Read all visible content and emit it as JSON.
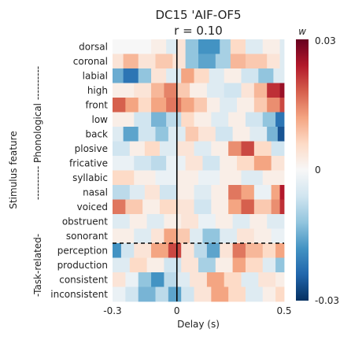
{
  "chart_data": {
    "type": "heatmap",
    "title": "DC15 'AIF-OF5",
    "subtitle": "r = 0.10",
    "xlabel": "Delay (s)",
    "ylabel": "Stimulus feature",
    "group_labels": [
      "---------- Phonological ----------",
      "-Task-related-"
    ],
    "colorbar_label": "w",
    "colorbar_ticks": [
      "0.03",
      "0",
      "-0.03"
    ],
    "x_ticks": [
      "-0.3",
      "0",
      "0.5"
    ],
    "x_range": [
      -0.3,
      0.5
    ],
    "value_range": [
      -0.03,
      0.03
    ],
    "colormap": [
      "#053061",
      "#2166ac",
      "#4393c3",
      "#92c5de",
      "#d1e5f0",
      "#f7f7f7",
      "#fddbc7",
      "#f4a582",
      "#d6604d",
      "#b2182b",
      "#67001f"
    ],
    "zero_line_x": 0,
    "features": [
      "dorsal",
      "coronal",
      "labial",
      "high",
      "front",
      "low",
      "back",
      "plosive",
      "fricative",
      "syllabic",
      "nasal",
      "voiced",
      "obstruent",
      "sonorant",
      "perception",
      "production",
      "consistent",
      "inconsistent"
    ],
    "segments_note_units": "x in seconds, v = weight",
    "rows": [
      {
        "feature": "dorsal",
        "segments": [
          [
            -0.3,
            0
          ],
          [
            -0.12,
            0.002
          ],
          [
            -0.05,
            -0.004
          ],
          [
            0.0,
            0.004
          ],
          [
            0.04,
            -0.012
          ],
          [
            0.1,
            -0.018
          ],
          [
            0.2,
            -0.01
          ],
          [
            0.25,
            0.006
          ],
          [
            0.32,
            -0.004
          ],
          [
            0.4,
            0.002
          ],
          [
            0.48,
            -0.004
          ]
        ]
      },
      {
        "feature": "coronal",
        "segments": [
          [
            -0.3,
            0.004
          ],
          [
            -0.25,
            0.01
          ],
          [
            -0.18,
            0.004
          ],
          [
            -0.1,
            0.008
          ],
          [
            -0.02,
            0.004
          ],
          [
            0.04,
            -0.012
          ],
          [
            0.1,
            -0.016
          ],
          [
            0.18,
            -0.01
          ],
          [
            0.25,
            0.01
          ],
          [
            0.32,
            0.008
          ],
          [
            0.42,
            0.004
          ],
          [
            0.48,
            -0.004
          ]
        ]
      },
      {
        "feature": "labial",
        "segments": [
          [
            -0.3,
            -0.015
          ],
          [
            -0.25,
            -0.022
          ],
          [
            -0.18,
            -0.012
          ],
          [
            -0.12,
            0.004
          ],
          [
            -0.05,
            -0.004
          ],
          [
            0.02,
            0.012
          ],
          [
            0.08,
            0.006
          ],
          [
            0.15,
            -0.004
          ],
          [
            0.22,
            0.002
          ],
          [
            0.3,
            -0.006
          ],
          [
            0.38,
            -0.012
          ],
          [
            0.45,
            -0.004
          ]
        ]
      },
      {
        "feature": "high",
        "segments": [
          [
            -0.3,
            0.002
          ],
          [
            -0.2,
            0.004
          ],
          [
            -0.12,
            0.01
          ],
          [
            -0.06,
            0.015
          ],
          [
            0.0,
            0.008
          ],
          [
            0.06,
            0.002
          ],
          [
            0.14,
            -0.004
          ],
          [
            0.22,
            -0.006
          ],
          [
            0.3,
            0.004
          ],
          [
            0.36,
            0.01
          ],
          [
            0.42,
            0.022
          ],
          [
            0.48,
            0.026
          ]
        ]
      },
      {
        "feature": "front",
        "segments": [
          [
            -0.3,
            0.018
          ],
          [
            -0.24,
            0.012
          ],
          [
            -0.18,
            0.006
          ],
          [
            -0.12,
            0.012
          ],
          [
            -0.05,
            0.016
          ],
          [
            0.02,
            0.012
          ],
          [
            0.08,
            0.008
          ],
          [
            0.14,
            0.002
          ],
          [
            0.2,
            -0.004
          ],
          [
            0.28,
            0.002
          ],
          [
            0.36,
            0.008
          ],
          [
            0.42,
            0.014
          ],
          [
            0.48,
            0.02
          ]
        ]
      },
      {
        "feature": "low",
        "segments": [
          [
            -0.3,
            0.002
          ],
          [
            -0.2,
            -0.006
          ],
          [
            -0.12,
            -0.014
          ],
          [
            -0.05,
            -0.008
          ],
          [
            0.02,
            0.006
          ],
          [
            0.08,
            0.002
          ],
          [
            0.16,
            -0.004
          ],
          [
            0.24,
            0.002
          ],
          [
            0.32,
            -0.006
          ],
          [
            0.4,
            -0.012
          ],
          [
            0.46,
            -0.022
          ]
        ]
      },
      {
        "feature": "back",
        "segments": [
          [
            -0.3,
            -0.004
          ],
          [
            -0.25,
            -0.016
          ],
          [
            -0.18,
            -0.006
          ],
          [
            -0.1,
            -0.012
          ],
          [
            -0.04,
            -0.004
          ],
          [
            0.04,
            0.008
          ],
          [
            0.1,
            0.004
          ],
          [
            0.18,
            -0.006
          ],
          [
            0.26,
            0.002
          ],
          [
            0.34,
            -0.004
          ],
          [
            0.42,
            -0.014
          ],
          [
            0.47,
            -0.026
          ]
        ]
      },
      {
        "feature": "plosive",
        "segments": [
          [
            -0.3,
            -0.006
          ],
          [
            -0.22,
            0.002
          ],
          [
            -0.15,
            0.006
          ],
          [
            -0.08,
            -0.004
          ],
          [
            0.0,
            0.004
          ],
          [
            0.08,
            -0.004
          ],
          [
            0.16,
            0.002
          ],
          [
            0.24,
            0.014
          ],
          [
            0.3,
            0.02
          ],
          [
            0.36,
            0.006
          ],
          [
            0.44,
            -0.006
          ]
        ]
      },
      {
        "feature": "fricative",
        "segments": [
          [
            -0.3,
            -0.002
          ],
          [
            -0.2,
            -0.006
          ],
          [
            -0.12,
            -0.008
          ],
          [
            -0.05,
            -0.002
          ],
          [
            0.04,
            0.004
          ],
          [
            0.12,
            -0.006
          ],
          [
            0.2,
            0.002
          ],
          [
            0.28,
            0.006
          ],
          [
            0.36,
            0.012
          ],
          [
            0.44,
            0.004
          ]
        ]
      },
      {
        "feature": "syllabic",
        "segments": [
          [
            -0.3,
            0.006
          ],
          [
            -0.2,
            0.002
          ],
          [
            -0.1,
            -0.002
          ],
          [
            0.0,
            0.002
          ],
          [
            0.1,
            -0.002
          ],
          [
            0.2,
            0.002
          ],
          [
            0.3,
            -0.004
          ],
          [
            0.4,
            0.002
          ]
        ]
      },
      {
        "feature": "nasal",
        "segments": [
          [
            -0.3,
            -0.008
          ],
          [
            -0.22,
            -0.004
          ],
          [
            -0.15,
            0.004
          ],
          [
            -0.08,
            -0.006
          ],
          [
            0.0,
            0.002
          ],
          [
            0.08,
            -0.004
          ],
          [
            0.16,
            0.002
          ],
          [
            0.24,
            0.016
          ],
          [
            0.3,
            0.012
          ],
          [
            0.36,
            -0.002
          ],
          [
            0.44,
            0.012
          ],
          [
            0.48,
            0.024
          ]
        ]
      },
      {
        "feature": "voiced",
        "segments": [
          [
            -0.3,
            0.016
          ],
          [
            -0.24,
            0.008
          ],
          [
            -0.16,
            0.002
          ],
          [
            -0.08,
            0.006
          ],
          [
            0.0,
            0.004
          ],
          [
            0.08,
            -0.006
          ],
          [
            0.16,
            0.002
          ],
          [
            0.24,
            0.012
          ],
          [
            0.3,
            0.018
          ],
          [
            0.36,
            0.008
          ],
          [
            0.44,
            0.014
          ],
          [
            0.48,
            0.022
          ]
        ]
      },
      {
        "feature": "obstruent",
        "segments": [
          [
            -0.3,
            -0.004
          ],
          [
            -0.22,
            0.002
          ],
          [
            -0.14,
            -0.004
          ],
          [
            -0.06,
            0.002
          ],
          [
            0.02,
            0.004
          ],
          [
            0.1,
            -0.002
          ],
          [
            0.18,
            0.002
          ],
          [
            0.26,
            -0.004
          ],
          [
            0.34,
            0.002
          ],
          [
            0.42,
            -0.004
          ]
        ]
      },
      {
        "feature": "sonorant",
        "segments": [
          [
            -0.3,
            0.002
          ],
          [
            -0.2,
            -0.004
          ],
          [
            -0.12,
            0.004
          ],
          [
            -0.06,
            0.012
          ],
          [
            0.0,
            0.008
          ],
          [
            0.06,
            -0.004
          ],
          [
            0.12,
            -0.012
          ],
          [
            0.2,
            -0.004
          ],
          [
            0.28,
            0.004
          ],
          [
            0.36,
            0.002
          ],
          [
            0.44,
            -0.002
          ]
        ]
      },
      {
        "feature": "perception",
        "segments": [
          [
            -0.3,
            -0.018
          ],
          [
            -0.26,
            -0.006
          ],
          [
            -0.2,
            0.004
          ],
          [
            -0.12,
            0.012
          ],
          [
            -0.04,
            0.02
          ],
          [
            0.02,
            0.004
          ],
          [
            0.08,
            -0.008
          ],
          [
            0.14,
            -0.016
          ],
          [
            0.2,
            0.004
          ],
          [
            0.26,
            0.016
          ],
          [
            0.32,
            0.01
          ],
          [
            0.4,
            0.006
          ],
          [
            0.46,
            0.012
          ]
        ]
      },
      {
        "feature": "production",
        "segments": [
          [
            -0.3,
            -0.004
          ],
          [
            -0.22,
            0.006
          ],
          [
            -0.14,
            0.002
          ],
          [
            -0.06,
            -0.006
          ],
          [
            0.02,
            0.004
          ],
          [
            0.1,
            -0.01
          ],
          [
            0.18,
            0.002
          ],
          [
            0.26,
            0.012
          ],
          [
            0.32,
            0.006
          ],
          [
            0.4,
            -0.004
          ],
          [
            0.46,
            -0.012
          ]
        ]
      },
      {
        "feature": "consistent",
        "segments": [
          [
            -0.3,
            0.004
          ],
          [
            -0.24,
            -0.002
          ],
          [
            -0.18,
            -0.012
          ],
          [
            -0.12,
            -0.018
          ],
          [
            -0.06,
            -0.008
          ],
          [
            0.0,
            -0.004
          ],
          [
            0.06,
            0.004
          ],
          [
            0.14,
            0.012
          ],
          [
            0.22,
            0.006
          ],
          [
            0.3,
            -0.004
          ],
          [
            0.38,
            0.004
          ],
          [
            0.46,
            0.002
          ]
        ]
      },
      {
        "feature": "inconsistent",
        "segments": [
          [
            -0.3,
            -0.002
          ],
          [
            -0.24,
            -0.006
          ],
          [
            -0.18,
            -0.014
          ],
          [
            -0.1,
            -0.008
          ],
          [
            -0.04,
            -0.016
          ],
          [
            0.02,
            -0.006
          ],
          [
            0.08,
            0.004
          ],
          [
            0.16,
            0.012
          ],
          [
            0.24,
            0.006
          ],
          [
            0.32,
            -0.004
          ],
          [
            0.4,
            0.002
          ],
          [
            0.46,
            0.006
          ]
        ]
      }
    ],
    "divider_after": "sonorant"
  }
}
